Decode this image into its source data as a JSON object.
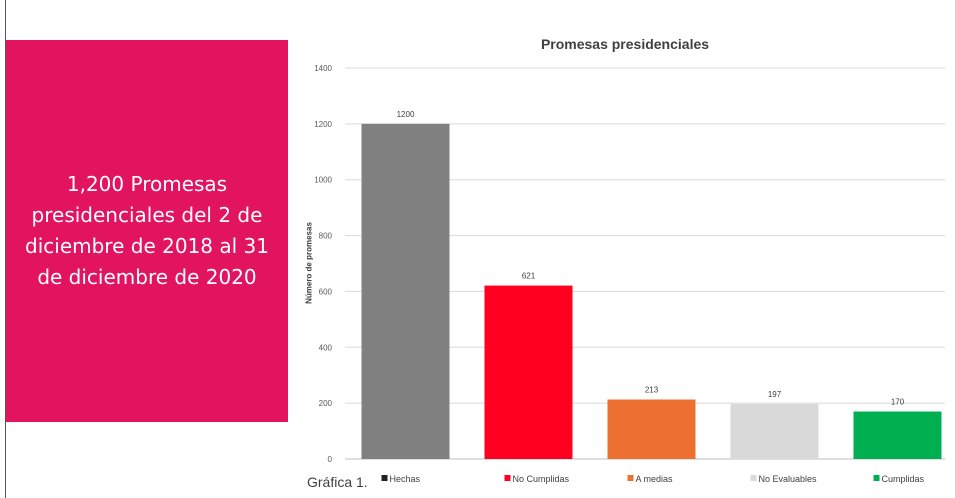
{
  "panel": {
    "headline": "1,200 Promesas presidenciales del 2 de diciembre de 2018 al 31 de diciembre de 2020",
    "background": "#e2135f"
  },
  "caption": "Gráfica 1.",
  "chart_data": {
    "type": "bar",
    "title": "Promesas presidenciales",
    "xlabel": "",
    "ylabel": "Número de promesas",
    "ylim": [
      0,
      1400
    ],
    "yticks": [
      0,
      200,
      400,
      600,
      800,
      1000,
      1200,
      1400
    ],
    "grid": true,
    "legend": "bottom",
    "categories": [
      "Hechas",
      "No Cumplidas",
      "A medias",
      "No Evaluables",
      "Cumplidas"
    ],
    "values": [
      1200,
      621,
      213,
      197,
      170
    ],
    "colors": [
      "#808080",
      "#ff0020",
      "#ee7030",
      "#d9d9d9",
      "#00b050"
    ]
  }
}
